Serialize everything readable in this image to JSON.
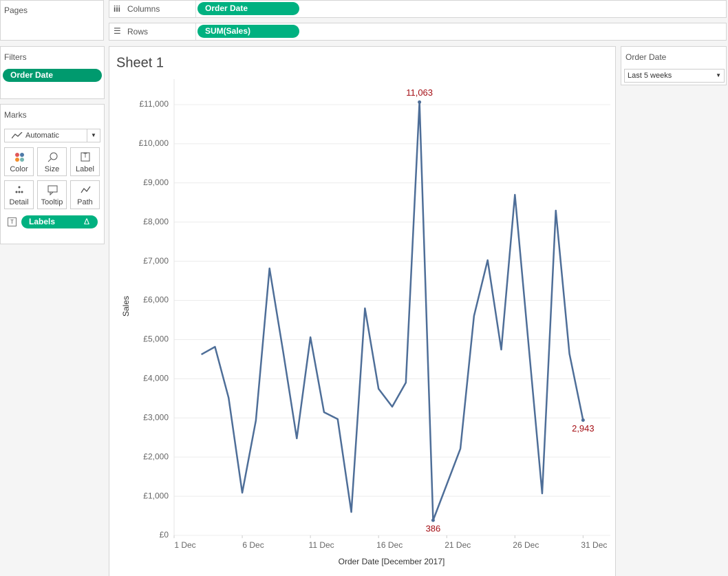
{
  "ui": {
    "pages": "Pages",
    "columns_label": "Columns",
    "columns_pill": "Order Date",
    "rows_label": "Rows",
    "rows_pill": "SUM(Sales)",
    "filters_title": "Filters",
    "filters_pill": "Order Date",
    "marks_title": "Marks",
    "marks_type": "Automatic",
    "marks_buttons": [
      "Color",
      "Size",
      "Label",
      "Detail",
      "Tooltip",
      "Path"
    ],
    "marks_pill": "Labels",
    "filter_card_title": "Order Date",
    "filter_card_value": "Last 5 weeks"
  },
  "chart_data": {
    "type": "line",
    "title": "Sheet 1",
    "xlabel": "Order Date [December 2017]",
    "ylabel": "Sales",
    "x": [
      3,
      4,
      5,
      6,
      7,
      8,
      9,
      10,
      11,
      12,
      13,
      14,
      15,
      16,
      17,
      18,
      19,
      20,
      21,
      22,
      23,
      24,
      25,
      26,
      27,
      28,
      29,
      30,
      31
    ],
    "series": [
      {
        "name": "SUM(Sales)",
        "color": "#4e6e98",
        "values": [
          4620,
          4815,
          3514,
          1089,
          2934,
          6817,
          4690,
          2477,
          5060,
          3145,
          2969,
          597,
          5798,
          3742,
          3285,
          3900,
          11063,
          386,
          1300,
          2213,
          5605,
          7028,
          4744,
          8697,
          4880,
          1072,
          8293,
          4638,
          2943
        ],
        "value_labels": [
          null,
          null,
          null,
          null,
          null,
          null,
          null,
          null,
          null,
          null,
          null,
          null,
          null,
          null,
          null,
          null,
          "11,063",
          "386",
          null,
          null,
          null,
          null,
          null,
          null,
          null,
          null,
          null,
          null,
          "2,943"
        ]
      }
    ],
    "xlim": [
      1,
      33
    ],
    "xticks": [
      {
        "value": 1,
        "label": "1 Dec"
      },
      {
        "value": 6,
        "label": "6 Dec"
      },
      {
        "value": 11,
        "label": "11 Dec"
      },
      {
        "value": 16,
        "label": "16 Dec"
      },
      {
        "value": 21,
        "label": "21 Dec"
      },
      {
        "value": 26,
        "label": "26 Dec"
      },
      {
        "value": 31,
        "label": "31 Dec"
      }
    ],
    "ylim": [
      0,
      11650
    ],
    "yticks": [
      {
        "value": 0,
        "label": "£0"
      },
      {
        "value": 1000,
        "label": "£1,000"
      },
      {
        "value": 2000,
        "label": "£2,000"
      },
      {
        "value": 3000,
        "label": "£3,000"
      },
      {
        "value": 4000,
        "label": "£4,000"
      },
      {
        "value": 5000,
        "label": "£5,000"
      },
      {
        "value": 6000,
        "label": "£6,000"
      },
      {
        "value": 7000,
        "label": "£7,000"
      },
      {
        "value": 8000,
        "label": "£8,000"
      },
      {
        "value": 9000,
        "label": "£9,000"
      },
      {
        "value": 10000,
        "label": "£10,000"
      },
      {
        "value": 11000,
        "label": "£11,000"
      }
    ],
    "grid": true,
    "label_color": "#a50f15"
  }
}
